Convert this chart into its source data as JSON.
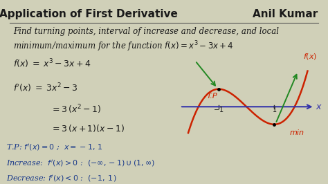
{
  "background_color": "#d0d0b8",
  "title": "Application of First Derivative",
  "author": "Anil Kumar",
  "title_color": "#1a1a1a",
  "title_fontsize": 11,
  "header_line_color": "#555555",
  "problem_line1": "Find turning points, interval of increase and decrease, and local",
  "problem_line2": "minimum/maximum for the function $f(x) = x^3 - 3x + 4$",
  "problem_color": "#1a1a1a",
  "problem_fontsize": 8.5,
  "math_lines": [
    "$f(x) \\;=\\; x^3 - 3x + 4$",
    "$f'(x) \\;=\\; 3x^2 - 3$",
    "$= 3\\,(x^2 - 1)$",
    "$= 3\\,(x+1)(x-1)$"
  ],
  "math_color": "#1a1a1a",
  "math_fontsize": 9,
  "tp_lines": [
    "T.P: $f'(x) = 0$ ;  $x = -1,\\, 1$",
    "Increase:  $f'(x) > 0$ :  $(-\\infty, -1) \\cup (1, \\infty)$",
    "Decrease: $f'(x) < 0$ :  $(-1,\\; 1)$"
  ],
  "tp_color": "#1a3a8a",
  "tp_fontsize": 8.0,
  "curve_color": "#cc2200",
  "axis_color": "#3333aa",
  "green_arrow_color": "#228822",
  "tp_label_color": "#cc2200",
  "min_label_color": "#cc2200",
  "fx_label_color": "#cc2200"
}
